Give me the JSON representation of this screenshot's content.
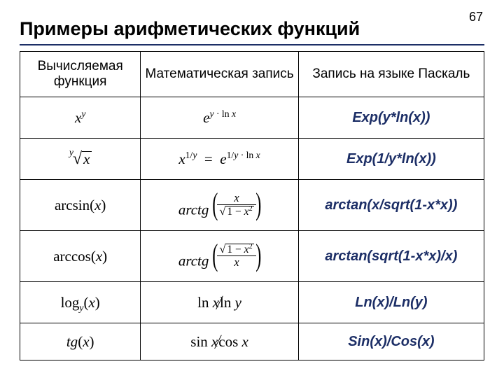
{
  "page_number": "67",
  "title": "Примеры арифметических функций",
  "colors": {
    "accent": "#1c2e66",
    "text": "#000000",
    "background": "#ffffff",
    "border": "#000000"
  },
  "fonts": {
    "title_size_pt": 22,
    "header_size_pt": 15,
    "body_size_pt": 16,
    "math_family": "Times New Roman",
    "ui_family": "Arial"
  },
  "table": {
    "column_widths_pct": [
      26,
      34,
      40
    ],
    "headers": {
      "col1": "Вычисляемая функция",
      "col2": "Математическая запись",
      "col3": "Запись на языке Паскаль"
    },
    "rows": [
      {
        "func_plain": "x^y",
        "math_plain": "e^(y·ln x)",
        "pascal": "Exp(y*ln(x))"
      },
      {
        "func_plain": "y-th root of x",
        "math_plain": "x^(1/y) = e^((1/y)·ln x)",
        "pascal": "Exp(1/y*ln(x))"
      },
      {
        "func_plain": "arcsin(x)",
        "math_plain": "arctg( x / sqrt(1 - x^2) )",
        "pascal": "arctan(x/sqrt(1-x*x))"
      },
      {
        "func_plain": "arccos(x)",
        "math_plain": "arctg( sqrt(1 - x^2) / x )",
        "pascal": "arctan(sqrt(1-x*x)/x)"
      },
      {
        "func_plain": "log_y(x)",
        "math_plain": "ln x / ln y",
        "pascal": "Ln(x)/Ln(y)"
      },
      {
        "func_plain": "tg(x)",
        "math_plain": "sin x / cos x",
        "pascal": "Sin(x)/Cos(x)"
      }
    ]
  }
}
